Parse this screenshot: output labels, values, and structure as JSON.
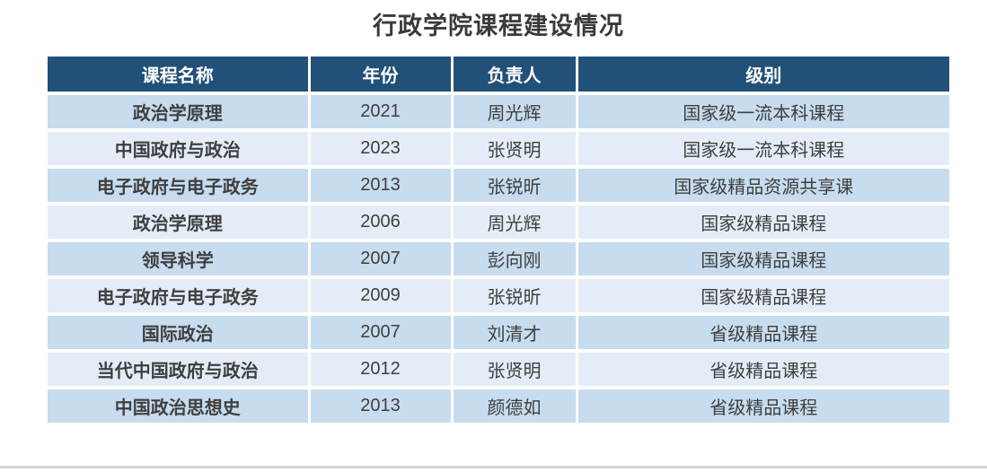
{
  "page": {
    "title": "行政学院课程建设情况"
  },
  "table": {
    "columns": [
      {
        "key": "course",
        "label": "课程名称"
      },
      {
        "key": "year",
        "label": "年份"
      },
      {
        "key": "leader",
        "label": "负责人"
      },
      {
        "key": "level",
        "label": "级别"
      }
    ],
    "rows": [
      [
        "政治学原理",
        "2021",
        "周光辉",
        "国家级一流本科课程"
      ],
      [
        "中国政府与政治",
        "2023",
        "张贤明",
        "国家级一流本科课程"
      ],
      [
        "电子政府与电子政务",
        "2013",
        "张锐昕",
        "国家级精品资源共享课"
      ],
      [
        "政治学原理",
        "2006",
        "周光辉",
        "国家级精品课程"
      ],
      [
        "领导科学",
        "2007",
        "彭向刚",
        "国家级精品课程"
      ],
      [
        "电子政府与电子政务",
        "2009",
        "张锐昕",
        "国家级精品课程"
      ],
      [
        "国际政治",
        "2007",
        "刘清才",
        "省级精品课程"
      ],
      [
        "当代中国政府与政治",
        "2012",
        "张贤明",
        "省级精品课程"
      ],
      [
        "中国政治思想史",
        "2013",
        "颜德如",
        "省级精品课程"
      ]
    ]
  },
  "colors": {
    "header_bg": "#215078",
    "header_text": "#ffffff",
    "row_odd_bg": "#c7dcee",
    "row_even_bg": "#e4edf7",
    "body_text": "#3f3f3f",
    "title_text": "#3a3a3a",
    "bottom_bar": "#d6d6d1"
  }
}
